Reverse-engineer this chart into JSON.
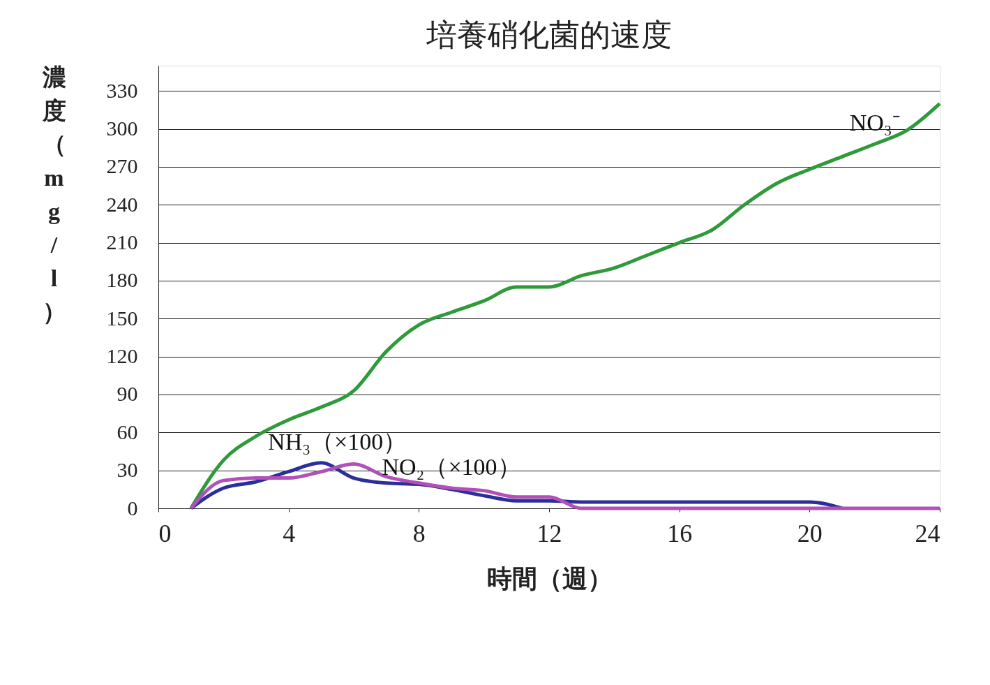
{
  "chart_data": {
    "type": "line",
    "title": "培養硝化菌的速度",
    "xlabel": "時間（週）",
    "ylabel": "濃度（mg/l）",
    "x": [
      1,
      2,
      3,
      4,
      5,
      6,
      7,
      8,
      9,
      10,
      11,
      12,
      13,
      14,
      15,
      16,
      17,
      18,
      19,
      20,
      21,
      22,
      23,
      24
    ],
    "series": [
      {
        "color": "#2e9a3a",
        "values": [
          0,
          38,
          57,
          70,
          80,
          93,
          124,
          145,
          155,
          164,
          175,
          175,
          184,
          190,
          200,
          210,
          220,
          240,
          257,
          268,
          278,
          288,
          299,
          320
        ]
      },
      {
        "color": "#2b2f9a",
        "values": [
          0,
          16,
          21,
          29,
          36,
          24,
          20,
          19,
          15,
          10,
          6,
          6,
          5,
          5,
          5,
          5,
          5,
          5,
          5,
          5,
          0,
          null,
          null,
          null
        ]
      },
      {
        "color": "#b050b8",
        "values": [
          0,
          22,
          24,
          24,
          29,
          35,
          25,
          20,
          16,
          14,
          9,
          9,
          0,
          0,
          0,
          0,
          0,
          0,
          0,
          0,
          0,
          0,
          0,
          0
        ]
      }
    ],
    "annotations": [
      {
        "text": "NO₃⁻",
        "x": 22,
        "y": 288
      },
      {
        "text": "NH₃（×100）",
        "x": 5.5,
        "y": 36
      },
      {
        "text": "NO₂（×100）",
        "x": 9,
        "y": 16
      }
    ],
    "xlim": [
      0,
      24
    ],
    "xticks": [
      0,
      4,
      8,
      12,
      16,
      20,
      24
    ],
    "ylim": [
      0,
      350
    ],
    "yticks": [
      0,
      30,
      60,
      90,
      120,
      150,
      180,
      210,
      240,
      270,
      300,
      330
    ],
    "grid": "y",
    "legend": false,
    "marker": "none",
    "line_style": "solid"
  }
}
